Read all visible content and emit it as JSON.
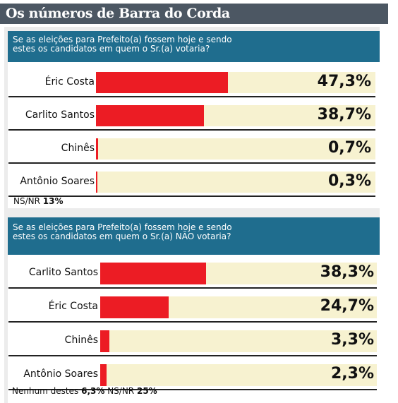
{
  "header": {
    "title": "Os números de Barra do Corda"
  },
  "chart_data": [
    {
      "type": "bar",
      "orientation": "horizontal",
      "title_lines": [
        "Se as eleições para Prefeito(a) fossem hoje e sendo",
        "estes os candidatos em quem o Sr.(a) votaria?"
      ],
      "categories": [
        "Éric Costa",
        "Carlito Santos",
        "Chinês",
        "Antônio Soares"
      ],
      "values": [
        47.3,
        38.7,
        0.7,
        0.3
      ],
      "value_labels": [
        "47,3%",
        "38,7%",
        "0,7%",
        "0,3%"
      ],
      "xlim": [
        0,
        100
      ],
      "footer": {
        "items": [
          {
            "label": "NS/NR",
            "value": "13%"
          }
        ]
      },
      "colors": {
        "bar": "#ec1c24",
        "track": "#f7f2d0",
        "header": "#1f6d8e"
      }
    },
    {
      "type": "bar",
      "orientation": "horizontal",
      "title_lines": [
        "Se as eleições para Prefeito(a) fossem hoje e sendo",
        "estes os candidatos em quem o Sr.(a) NÃO votaria?"
      ],
      "categories": [
        "Carlito Santos",
        "Éric Costa",
        "Chinês",
        "Antônio Soares"
      ],
      "values": [
        38.3,
        24.7,
        3.3,
        2.3
      ],
      "value_labels": [
        "38,3%",
        "24,7%",
        "3,3%",
        "2,3%"
      ],
      "xlim": [
        0,
        100
      ],
      "footer": {
        "items": [
          {
            "label": "Nenhum destes",
            "value": "6,3%"
          },
          {
            "label": "NS/NR",
            "value": "25%"
          }
        ]
      },
      "colors": {
        "bar": "#ec1c24",
        "track": "#f7f2d0",
        "header": "#1f6d8e"
      }
    }
  ]
}
